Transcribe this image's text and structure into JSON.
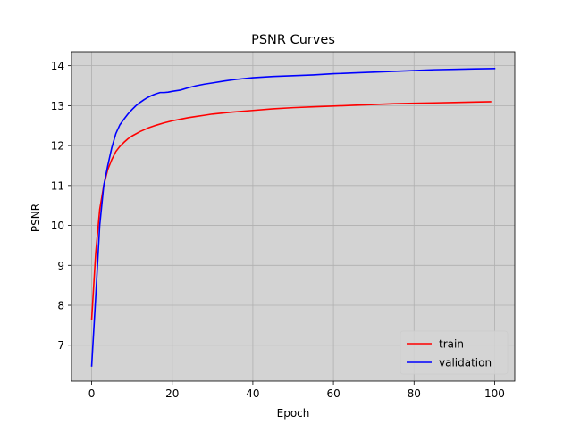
{
  "chart_data": {
    "type": "line",
    "title": "PSNR Curves",
    "xlabel": "Epoch",
    "ylabel": "PSNR",
    "xlim": [
      -5,
      105
    ],
    "ylim": [
      6.1,
      14.35
    ],
    "xticks": [
      0,
      20,
      40,
      60,
      80,
      100
    ],
    "yticks": [
      7,
      8,
      9,
      10,
      11,
      12,
      13,
      14
    ],
    "grid": true,
    "legend_position": "lower-right",
    "plot_background": "#d3d3d3",
    "grid_color": "#b0b0b0",
    "series": [
      {
        "name": "train",
        "color": "#ff0000",
        "x": [
          0,
          1,
          2,
          3,
          4,
          5,
          6,
          7,
          8,
          9,
          10,
          12,
          14,
          16,
          18,
          20,
          22,
          24,
          26,
          28,
          30,
          35,
          40,
          45,
          50,
          55,
          60,
          65,
          70,
          75,
          80,
          85,
          90,
          95,
          99
        ],
        "values": [
          7.65,
          9.3,
          10.4,
          11.0,
          11.4,
          11.65,
          11.85,
          11.98,
          12.08,
          12.17,
          12.24,
          12.35,
          12.44,
          12.51,
          12.57,
          12.62,
          12.66,
          12.7,
          12.73,
          12.76,
          12.79,
          12.84,
          12.88,
          12.92,
          12.95,
          12.97,
          12.99,
          13.01,
          13.03,
          13.05,
          13.06,
          13.07,
          13.08,
          13.09,
          13.1
        ]
      },
      {
        "name": "validation",
        "color": "#0000ff",
        "x": [
          0,
          1,
          2,
          3,
          4,
          5,
          6,
          7,
          8,
          9,
          10,
          11,
          12,
          13,
          14,
          15,
          16,
          17,
          18,
          19,
          20,
          22,
          24,
          26,
          28,
          30,
          33,
          36,
          40,
          45,
          50,
          55,
          60,
          65,
          70,
          75,
          80,
          85,
          90,
          95,
          100
        ],
        "values": [
          6.48,
          8.2,
          10.0,
          11.0,
          11.5,
          11.95,
          12.3,
          12.52,
          12.66,
          12.79,
          12.9,
          13.0,
          13.08,
          13.15,
          13.21,
          13.26,
          13.3,
          13.33,
          13.33,
          13.34,
          13.36,
          13.39,
          13.45,
          13.5,
          13.54,
          13.57,
          13.62,
          13.66,
          13.7,
          13.73,
          13.75,
          13.77,
          13.8,
          13.82,
          13.84,
          13.86,
          13.88,
          13.9,
          13.91,
          13.92,
          13.93
        ]
      }
    ]
  }
}
